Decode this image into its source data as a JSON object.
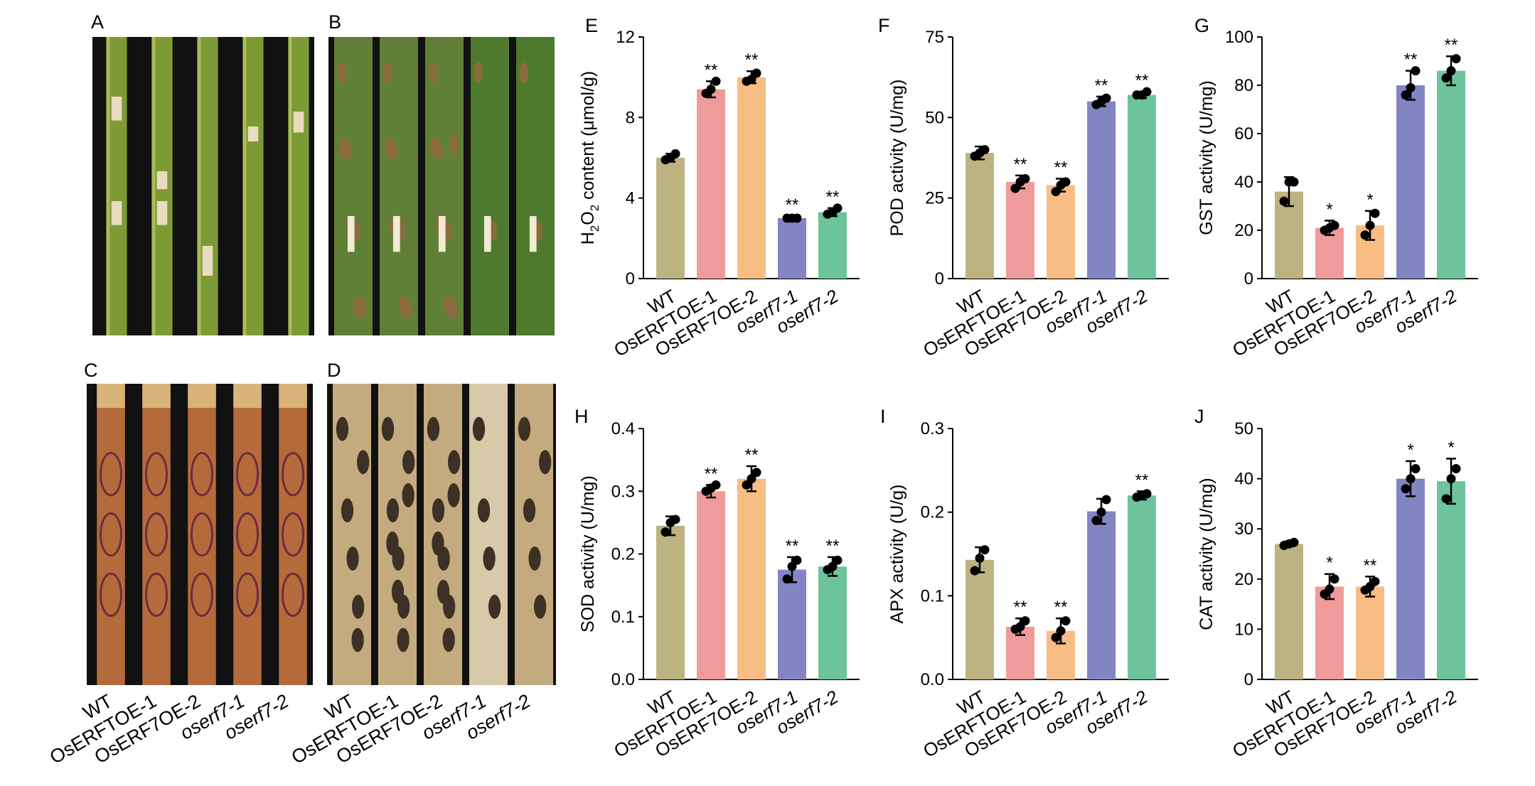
{
  "panel_letters": {
    "A": "A",
    "B": "B",
    "C": "C",
    "D": "D",
    "E": "E",
    "F": "F",
    "G": "G",
    "H": "H",
    "I": "I",
    "J": "J"
  },
  "photo_groups": [
    "WT",
    "OsERFTOE-1",
    "OsERF7OE-2",
    "oserf7-1",
    "oserf7-2"
  ],
  "colors": {
    "WT": "#bcb381",
    "OE1": "#ef9b9b",
    "OE2": "#f7bd85",
    "KO1": "#8385c3",
    "KO2": "#6dc49c",
    "stem": "#7e9a35",
    "leaf_green": "#4d7a2c",
    "sheath_brown": "#b56a3c",
    "dry_leaf": "#c4ab7f",
    "photo_bg": "#111111"
  },
  "chart_data": [
    {
      "panel": "E",
      "type": "bar",
      "ylabel": {
        "pre": "H",
        "sub1": "2",
        "mid": "O",
        "sub2": "2",
        "post": " content (μmol/g)"
      },
      "ylim": [
        0,
        12
      ],
      "yticks": [
        "0",
        "4",
        "8",
        "12"
      ],
      "categories": [
        "WT",
        "OsERFTOE-1",
        "OsERF7OE-2",
        "oserf7-1",
        "oserf7-2"
      ],
      "values": [
        6.0,
        9.4,
        10.0,
        3.0,
        3.3
      ],
      "errors": [
        0.2,
        0.4,
        0.3,
        0.1,
        0.2
      ],
      "points": [
        [
          5.9,
          6.0,
          6.2
        ],
        [
          9.2,
          9.4,
          9.8
        ],
        [
          9.8,
          9.9,
          10.2
        ],
        [
          3.0,
          3.0,
          3.0
        ],
        [
          3.2,
          3.3,
          3.5
        ]
      ],
      "significance": [
        "",
        "**",
        "**",
        "**",
        "**"
      ]
    },
    {
      "panel": "F",
      "type": "bar",
      "ylabel": "POD activity (U/mg)",
      "ylim": [
        0,
        75
      ],
      "yticks": [
        "0",
        "25",
        "50",
        "75"
      ],
      "categories": [
        "WT",
        "OsERFTOE-1",
        "OsERF7OE-2",
        "oserf7-1",
        "oserf7-2"
      ],
      "values": [
        39,
        30,
        29,
        55,
        57
      ],
      "errors": [
        2,
        2,
        2,
        1.5,
        1
      ],
      "points": [
        [
          38,
          39,
          40
        ],
        [
          28,
          30,
          31
        ],
        [
          27,
          29,
          30
        ],
        [
          54,
          55,
          56
        ],
        [
          57,
          57,
          58
        ]
      ],
      "significance": [
        "",
        "**",
        "**",
        "**",
        "**"
      ]
    },
    {
      "panel": "G",
      "type": "bar",
      "ylabel": "GST activity (U/mg)",
      "ylim": [
        0,
        100
      ],
      "yticks": [
        "0",
        "20",
        "40",
        "60",
        "80",
        "100"
      ],
      "categories": [
        "WT",
        "OsERFTOE-1",
        "OsERF7OE-2",
        "oserf7-1",
        "oserf7-2"
      ],
      "values": [
        36,
        21,
        22,
        80,
        86
      ],
      "errors": [
        6,
        3,
        6,
        6,
        6
      ],
      "points": [
        [
          32,
          40,
          40
        ],
        [
          20,
          21,
          22
        ],
        [
          18,
          22,
          27
        ],
        [
          76,
          79,
          86
        ],
        [
          83,
          86,
          91
        ]
      ],
      "significance": [
        "",
        "*",
        "*",
        "**",
        "**"
      ]
    },
    {
      "panel": "H",
      "type": "bar",
      "ylabel": "SOD activity (U/mg)",
      "ylim": [
        0,
        0.4
      ],
      "yticks": [
        "0.0",
        "0.1",
        "0.2",
        "0.3",
        "0.4"
      ],
      "categories": [
        "WT",
        "OsERFTOE-1",
        "OsERF7OE-2",
        "oserf7-1",
        "oserf7-2"
      ],
      "values": [
        0.245,
        0.3,
        0.32,
        0.175,
        0.18
      ],
      "errors": [
        0.015,
        0.01,
        0.02,
        0.02,
        0.015
      ],
      "points": [
        [
          0.235,
          0.25,
          0.255
        ],
        [
          0.3,
          0.305,
          0.31
        ],
        [
          0.31,
          0.32,
          0.33
        ],
        [
          0.16,
          0.18,
          0.19
        ],
        [
          0.175,
          0.18,
          0.19
        ]
      ],
      "significance": [
        "",
        "**",
        "**",
        "**",
        "**"
      ]
    },
    {
      "panel": "I",
      "type": "bar",
      "ylabel": "APX activity (U/g)",
      "ylim": [
        0,
        0.3
      ],
      "yticks": [
        "0.0",
        "0.1",
        "0.2",
        "0.3"
      ],
      "categories": [
        "WT",
        "OsERFTOE-1",
        "OsERF7OE-2",
        "oserf7-1",
        "oserf7-2"
      ],
      "values": [
        0.143,
        0.063,
        0.058,
        0.201,
        0.22
      ],
      "errors": [
        0.015,
        0.01,
        0.015,
        0.015,
        0.005
      ],
      "points": [
        [
          0.13,
          0.145,
          0.155
        ],
        [
          0.06,
          0.063,
          0.07
        ],
        [
          0.05,
          0.058,
          0.07
        ],
        [
          0.19,
          0.2,
          0.215
        ],
        [
          0.218,
          0.22,
          0.222
        ]
      ],
      "significance": [
        "",
        "**",
        "**",
        "",
        "**"
      ]
    },
    {
      "panel": "J",
      "type": "bar",
      "ylabel": "CAT activity (U/mg)",
      "ylim": [
        0,
        50
      ],
      "yticks": [
        "0",
        "10",
        "20",
        "30",
        "40",
        "50"
      ],
      "categories": [
        "WT",
        "OsERFTOE-1",
        "OsERF7OE-2",
        "oserf7-1",
        "oserf7-2"
      ],
      "values": [
        27,
        18.5,
        18.5,
        40,
        39.5
      ],
      "errors": [
        0.5,
        2.5,
        2,
        3.5,
        4.5
      ],
      "points": [
        [
          26.7,
          27,
          27.3
        ],
        [
          17,
          18,
          20
        ],
        [
          17.8,
          18.5,
          19.5
        ],
        [
          38,
          40,
          42
        ],
        [
          36,
          40,
          42
        ]
      ],
      "significance": [
        "",
        "*",
        "**",
        "*",
        "*"
      ]
    }
  ]
}
